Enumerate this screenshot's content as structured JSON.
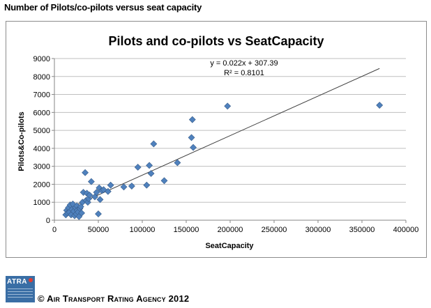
{
  "page": {
    "title": "Number of Pilots/co-pilots versus seat capacity",
    "copyright": "© Air Transport Rating Agency 2012",
    "logo_text": "ATRA"
  },
  "colors": {
    "marker": "#4f81bd",
    "marker_stroke": "#385d8a",
    "trendline": "#404040",
    "gridline": "#bfbfbf",
    "axis": "#868686"
  },
  "chart_data": {
    "type": "scatter",
    "title": "Pilots and co-pilots vs SeatCapacity",
    "xlabel": "SeatCapacity",
    "ylabel": "Pilots&Co-pilots",
    "xlim": [
      0,
      400000
    ],
    "ylim": [
      0,
      9000
    ],
    "xticks": [
      0,
      50000,
      100000,
      150000,
      200000,
      250000,
      300000,
      350000,
      400000
    ],
    "yticks": [
      0,
      1000,
      2000,
      3000,
      4000,
      5000,
      6000,
      7000,
      8000,
      9000
    ],
    "grid": "horizontal",
    "legend": "none",
    "trendline": {
      "equation": "y = 0.022x + 307.39",
      "r2": "R² = 0.8101",
      "slope": 0.022,
      "intercept": 307.39,
      "x_range": [
        14000,
        370000
      ]
    },
    "points": [
      [
        13000,
        300
      ],
      [
        14000,
        550
      ],
      [
        15000,
        400
      ],
      [
        16000,
        700
      ],
      [
        17000,
        450
      ],
      [
        18000,
        850
      ],
      [
        19000,
        300
      ],
      [
        20000,
        600
      ],
      [
        21000,
        900
      ],
      [
        22000,
        500
      ],
      [
        23000,
        250
      ],
      [
        24000,
        700
      ],
      [
        25000,
        350
      ],
      [
        25500,
        800
      ],
      [
        26000,
        550
      ],
      [
        27000,
        450
      ],
      [
        28000,
        200
      ],
      [
        29000,
        650
      ],
      [
        30000,
        750
      ],
      [
        31000,
        400
      ],
      [
        32000,
        1000
      ],
      [
        33000,
        1550
      ],
      [
        35000,
        2650
      ],
      [
        36000,
        1100
      ],
      [
        37000,
        1500
      ],
      [
        38000,
        1000
      ],
      [
        39000,
        1200
      ],
      [
        40000,
        1400
      ],
      [
        42000,
        2150
      ],
      [
        46000,
        1300
      ],
      [
        48000,
        1550
      ],
      [
        50000,
        350
      ],
      [
        51000,
        1800
      ],
      [
        52000,
        1150
      ],
      [
        54000,
        1650
      ],
      [
        56000,
        1700
      ],
      [
        61000,
        1600
      ],
      [
        64000,
        1950
      ],
      [
        79000,
        1850
      ],
      [
        88000,
        1900
      ],
      [
        95000,
        2950
      ],
      [
        105000,
        1950
      ],
      [
        108000,
        3050
      ],
      [
        110000,
        2600
      ],
      [
        113000,
        4250
      ],
      [
        125000,
        2200
      ],
      [
        140000,
        3200
      ],
      [
        156000,
        4600
      ],
      [
        157000,
        5600
      ],
      [
        158000,
        4050
      ],
      [
        197000,
        6350
      ],
      [
        370000,
        6400
      ]
    ]
  }
}
